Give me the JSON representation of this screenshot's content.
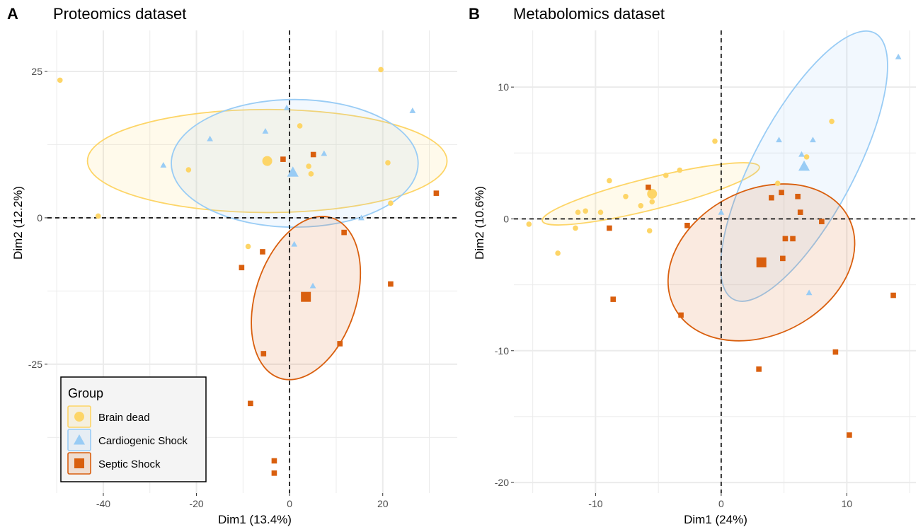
{
  "figure": {
    "colors": {
      "brain_dead": "#FDD567",
      "cardiogenic_shock": "#99CCF5",
      "septic_shock": "#D95F0E",
      "grid": "#EBEBEB"
    }
  },
  "legend": {
    "title": "Group",
    "items": [
      {
        "label": "Brain dead",
        "shape": "circle",
        "color": "#FDD567"
      },
      {
        "label": "Cardiogenic Shock",
        "shape": "triangle",
        "color": "#99CCF5"
      },
      {
        "label": "Septic Shock",
        "shape": "square",
        "color": "#D95F0E"
      }
    ]
  },
  "chart_data": [
    {
      "panel_letter": "A",
      "title": "Proteomics dataset",
      "type": "scatter",
      "xlabel": "Dim1 (13.4%)",
      "ylabel": "Dim2 (12.2%)",
      "xlim": [
        -52,
        36
      ],
      "ylim": [
        -47,
        32
      ],
      "xticks": [
        -40,
        -20,
        0,
        20
      ],
      "xtick_labels": [
        "-40",
        "-20",
        "0",
        "20"
      ],
      "yticks": [
        -25,
        0,
        25
      ],
      "ytick_labels": [
        "-25",
        "0",
        "25"
      ],
      "series": [
        {
          "name": "Brain dead",
          "shape": "circle",
          "color": "#FDD567",
          "points": [
            [
              -49.3,
              23.5
            ],
            [
              -41.1,
              0.3
            ],
            [
              -21.7,
              8.2
            ],
            [
              -8.9,
              -4.9
            ],
            [
              2.2,
              15.7
            ],
            [
              4.1,
              8.8
            ],
            [
              4.6,
              7.5
            ],
            [
              19.6,
              25.3
            ],
            [
              21.1,
              9.4
            ],
            [
              21.7,
              2.5
            ]
          ],
          "centroid": [
            -4.8,
            9.7
          ],
          "ellipse": {
            "center": [
              -4.8,
              9.7
            ],
            "rx": 38.6,
            "ry": 8.8,
            "rotation_deg": 0
          }
        },
        {
          "name": "Cardiogenic Shock",
          "shape": "triangle",
          "color": "#99CCF5",
          "points": [
            [
              -27.1,
              9.0
            ],
            [
              -17.1,
              13.5
            ],
            [
              -5.2,
              14.8
            ],
            [
              -0.6,
              18.8
            ],
            [
              1.0,
              -4.5
            ],
            [
              5.0,
              -11.6
            ],
            [
              7.4,
              11.0
            ],
            [
              15.4,
              0.0
            ],
            [
              26.4,
              18.3
            ]
          ],
          "centroid": [
            0.7,
            7.8
          ],
          "ellipse": {
            "center": [
              1.1,
              9.3
            ],
            "rx": 26.5,
            "ry": 10.9,
            "rotation_deg": 0
          }
        },
        {
          "name": "Septic Shock",
          "shape": "square",
          "color": "#D95F0E",
          "points": [
            [
              -10.3,
              -8.5
            ],
            [
              -5.8,
              -5.8
            ],
            [
              -5.6,
              -23.2
            ],
            [
              -8.4,
              -31.7
            ],
            [
              -3.3,
              -41.5
            ],
            [
              -3.3,
              -43.6
            ],
            [
              -1.4,
              10.0
            ],
            [
              5.1,
              10.8
            ],
            [
              10.8,
              -21.5
            ],
            [
              11.7,
              -2.5
            ],
            [
              21.7,
              -11.3
            ],
            [
              31.5,
              4.2
            ]
          ],
          "centroid": [
            3.5,
            -13.5
          ],
          "ellipse": {
            "center": [
              3.5,
              -13.7
            ],
            "rx": 18.1,
            "ry": 8.6,
            "rotation_deg": -72
          }
        }
      ]
    },
    {
      "panel_letter": "B",
      "title": "Metabolomics dataset",
      "type": "scatter",
      "xlabel": "Dim1 (24%)",
      "ylabel": "Dim2 (10.6%)",
      "xlim": [
        -16.5,
        15.5
      ],
      "ylim": [
        -20.8,
        14.3
      ],
      "xticks": [
        -10,
        0,
        10
      ],
      "xtick_labels": [
        "-10",
        "0",
        "10"
      ],
      "yticks": [
        -20,
        -10,
        0,
        10
      ],
      "ytick_labels": [
        "-20",
        "-10",
        "0",
        "10"
      ],
      "series": [
        {
          "name": "Brain dead",
          "shape": "circle",
          "color": "#FDD567",
          "points": [
            [
              -15.3,
              -0.4
            ],
            [
              -13.0,
              -2.6
            ],
            [
              -11.6,
              -0.7
            ],
            [
              -11.4,
              0.5
            ],
            [
              -10.8,
              0.6
            ],
            [
              -9.6,
              0.5
            ],
            [
              -8.9,
              2.9
            ],
            [
              -7.6,
              1.7
            ],
            [
              -6.4,
              1.0
            ],
            [
              -5.7,
              -0.9
            ],
            [
              -5.5,
              1.3
            ],
            [
              -4.4,
              3.3
            ],
            [
              -3.3,
              3.7
            ],
            [
              -0.5,
              5.9
            ],
            [
              4.5,
              2.7
            ],
            [
              6.8,
              4.7
            ],
            [
              8.8,
              7.4
            ]
          ],
          "centroid": [
            -5.5,
            1.9
          ],
          "ellipse": {
            "center": [
              -5.6,
              1.9
            ],
            "rx": 8.9,
            "ry": 1.2,
            "rotation_deg": -14
          }
        },
        {
          "name": "Cardiogenic Shock",
          "shape": "triangle",
          "color": "#99CCF5",
          "points": [
            [
              0.0,
              0.5
            ],
            [
              4.6,
              6.0
            ],
            [
              6.4,
              4.9
            ],
            [
              7.3,
              6.0
            ],
            [
              7.0,
              -5.6
            ],
            [
              14.1,
              12.3
            ]
          ],
          "centroid": [
            6.6,
            4.0
          ],
          "ellipse": {
            "center": [
              6.6,
              4.0
            ],
            "rx": 12.0,
            "ry": 3.8,
            "rotation_deg": -62
          }
        },
        {
          "name": "Septic Shock",
          "shape": "square",
          "color": "#D95F0E",
          "points": [
            [
              -8.9,
              -0.7
            ],
            [
              -8.6,
              -6.1
            ],
            [
              -5.8,
              2.4
            ],
            [
              -3.2,
              -7.3
            ],
            [
              -2.7,
              -0.5
            ],
            [
              3.0,
              -11.4
            ],
            [
              4.0,
              1.6
            ],
            [
              4.8,
              2.0
            ],
            [
              4.9,
              -3.0
            ],
            [
              5.1,
              -1.5
            ],
            [
              5.7,
              -1.5
            ],
            [
              6.1,
              1.7
            ],
            [
              6.3,
              0.5
            ],
            [
              8.0,
              -0.2
            ],
            [
              9.1,
              -10.1
            ],
            [
              10.2,
              -16.4
            ],
            [
              13.7,
              -5.8
            ]
          ],
          "centroid": [
            3.2,
            -3.3
          ],
          "ellipse": {
            "center": [
              3.2,
              -3.3
            ],
            "rx": 7.8,
            "ry": 5.5,
            "rotation_deg": -27
          }
        }
      ]
    }
  ]
}
